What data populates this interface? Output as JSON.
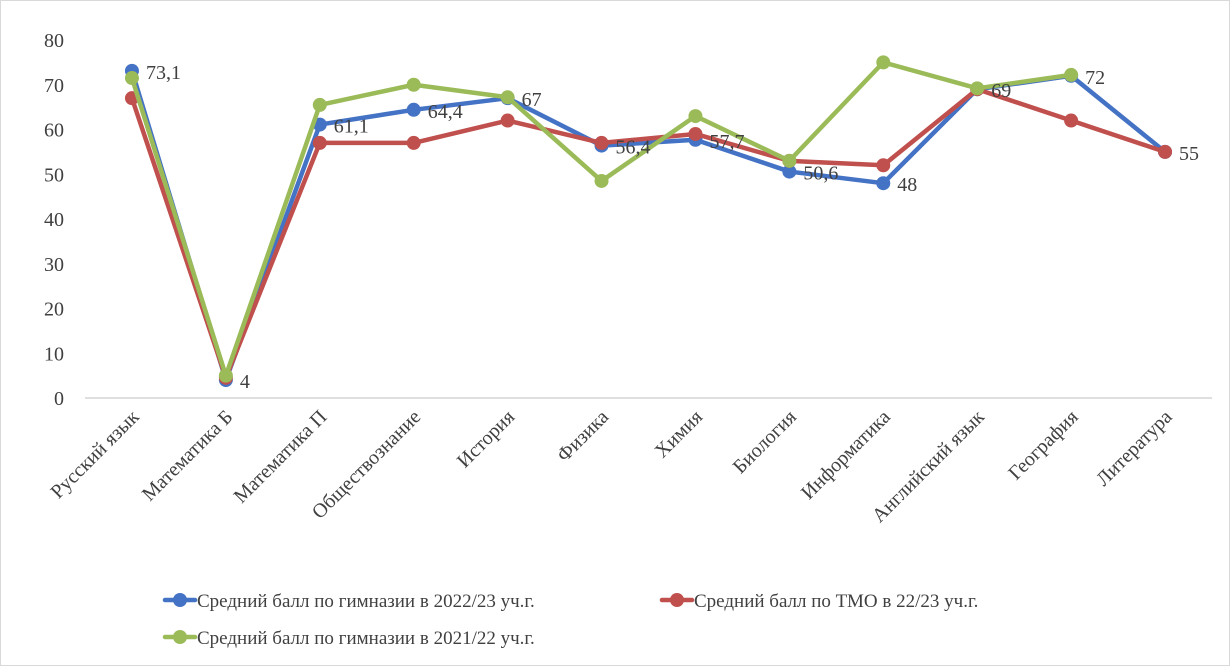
{
  "chart_data": {
    "type": "line",
    "title": "",
    "xlabel": "",
    "ylabel": "",
    "ylim": [
      0,
      80
    ],
    "y_ticks": [
      "0",
      "10",
      "20",
      "30",
      "40",
      "50",
      "60",
      "70",
      "80"
    ],
    "grid": false,
    "legend_position": "bottom",
    "categories": [
      "Русский язык",
      "Математика Б",
      "Математика П",
      "Обществознание",
      "История",
      "Физика",
      "Химия",
      "Биология",
      "Информатика",
      "Английский язык",
      "География",
      "Литература"
    ],
    "series": [
      {
        "name": "Средний балл по гимназии в 2022/23 уч.г.",
        "color": "#4472c4",
        "values": [
          73.1,
          4,
          61.1,
          64.4,
          67,
          56.4,
          57.7,
          50.6,
          48,
          69,
          72,
          55
        ],
        "labels": [
          "73,1",
          "4",
          "61,1",
          "64,4",
          "67",
          "56,4",
          "57,7",
          "50,6",
          "48",
          "69",
          "72",
          "55"
        ]
      },
      {
        "name": "Средний балл по ТМО в 22/23 уч.г.",
        "color": "#c0504d",
        "values": [
          67,
          4.5,
          57,
          57,
          62,
          57,
          59,
          53,
          52,
          69,
          62,
          55
        ]
      },
      {
        "name": "Средний балл по гимназии в 2021/22 уч.г.",
        "color": "#9bbb59",
        "values": [
          71.5,
          5,
          65.5,
          70,
          67.2,
          48.5,
          63,
          53,
          75,
          69.2,
          72.2,
          null
        ]
      }
    ]
  }
}
